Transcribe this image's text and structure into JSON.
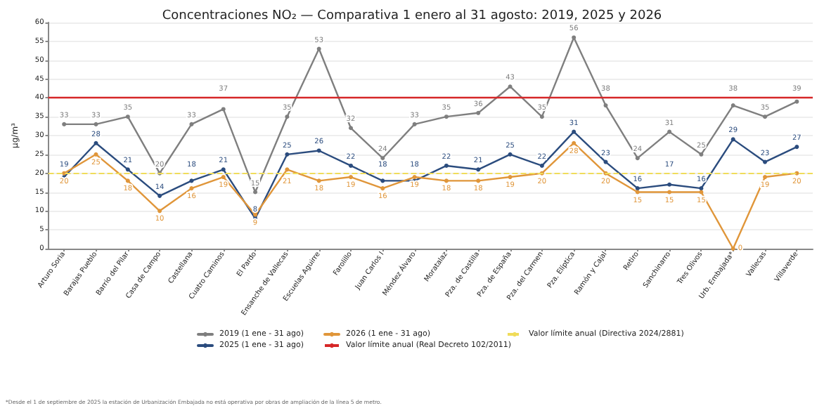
{
  "chart_data": {
    "type": "line",
    "title": "Concentraciones NO₂ — Comparativa 1 enero al 31 agosto: 2019, 2025 y 2026",
    "ylabel": "µg/m³",
    "categories": [
      "Arturo Soria",
      "Barajas Pueblo",
      "Barrio del Pilar",
      "Casa de Campo",
      "Castellana",
      "Cuatro Caminos",
      "El Pardo",
      "Ensanche de Vallecas",
      "Escuelas Aguirre",
      "Farolillo",
      "Juan Carlos I",
      "Méndez Álvaro",
      "Moratalaz",
      "Pza. de Castilla",
      "Pza. de España",
      "Pza. del Carmen",
      "Pza. Elíptica",
      "Ramón y Cajal",
      "Retiro",
      "Sanchinarro",
      "Tres Olivos",
      "Urb. Embajada*",
      "Vallecas",
      "Villaverde"
    ],
    "series": [
      {
        "name": "2019 (1 ene - 31 ago)",
        "color": "#7f7f7f",
        "values": [
          33,
          33,
          35,
          20,
          33,
          37,
          15,
          35,
          53,
          32,
          24,
          33,
          35,
          36,
          43,
          35,
          56,
          38,
          24,
          31,
          25,
          38,
          35,
          39
        ]
      },
      {
        "name": "2025 (1 ene - 31 ago)",
        "color": "#2b4c7e",
        "values": [
          19,
          28,
          21,
          14,
          18,
          21,
          8,
          25,
          26,
          22,
          18,
          18,
          22,
          21,
          25,
          22,
          31,
          23,
          16,
          17,
          16,
          29,
          23,
          27
        ]
      },
      {
        "name": "2026 (1 ene - 31 ago)",
        "color": "#e0963a",
        "values": [
          20,
          25,
          18,
          10,
          16,
          19,
          9,
          21,
          18,
          19,
          16,
          19,
          18,
          18,
          19,
          20,
          28,
          20,
          15,
          15,
          15,
          0,
          19,
          20
        ]
      }
    ],
    "ref_lines": [
      {
        "axis": "y",
        "value": 40,
        "label": "Valor límite anual (Real Decreto 102/2011)",
        "color": "#d62728",
        "line_style": "solid"
      },
      {
        "axis": "y",
        "value": 20,
        "label": "Valor límite anual (Directiva 2024/2881)",
        "color": "#f0dc5a",
        "line_style": "dashed"
      }
    ],
    "ylim": [
      0,
      60
    ],
    "yticks": [
      0,
      5,
      10,
      15,
      20,
      25,
      30,
      35,
      40,
      45,
      50,
      55,
      60
    ],
    "grid": "y",
    "legend": "bottom",
    "marker": "circle",
    "line_style": "solid",
    "data_labels": true,
    "annotations": [
      "*Desde el 1 de septiembre de 2025 la estación de Urbanización Embajada no está operativa por obras de ampliación de la línea 5 de metro."
    ]
  }
}
